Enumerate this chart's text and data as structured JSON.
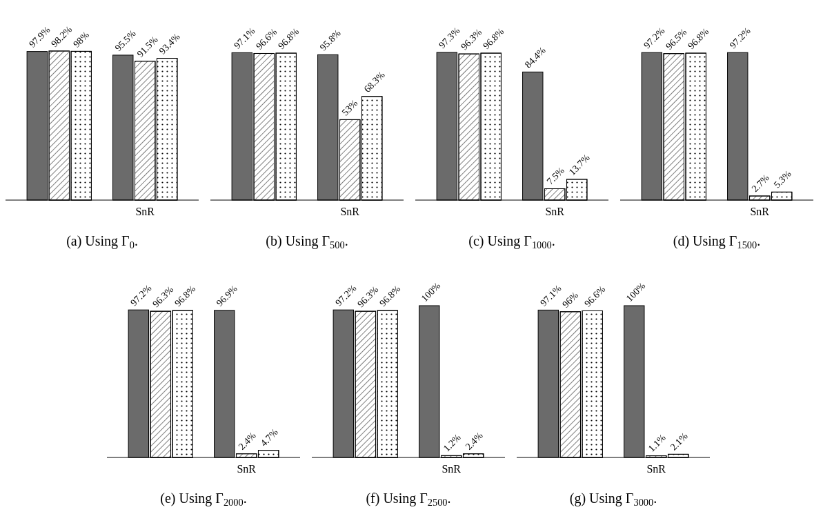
{
  "chart_data": [
    {
      "type": "bar",
      "title": "(a) Using Γ$_{0}$.",
      "categories": [
        null,
        "SnR"
      ],
      "series": [
        {
          "color": "#6b6b6b",
          "values": [
            97.9,
            95.5
          ],
          "value_labels": [
            "97.9%",
            "95.5%"
          ]
        },
        {
          "color": "#ffffff",
          "values": [
            98.2,
            91.5
          ],
          "value_labels": [
            "98.2%",
            "91.5%"
          ]
        },
        {
          "color": "#ffffff",
          "values": [
            98,
            93.4
          ],
          "value_labels": [
            "98%",
            "93.4%"
          ]
        }
      ]
    },
    {
      "type": "bar",
      "title": "(b) Using Γ$_{500}$.",
      "categories": [
        null,
        "SnR"
      ],
      "series": [
        {
          "color": "#6b6b6b",
          "values": [
            97.1,
            95.8
          ],
          "value_labels": [
            "97.1%",
            "95.8%"
          ]
        },
        {
          "color": "#ffffff",
          "values": [
            96.6,
            53
          ],
          "value_labels": [
            "96.6%",
            "53%"
          ]
        },
        {
          "color": "#ffffff",
          "values": [
            96.8,
            68.3
          ],
          "value_labels": [
            "96.8%",
            "68.3%"
          ]
        }
      ]
    },
    {
      "type": "bar",
      "title": "(c) Using Γ$_{1000}$.",
      "categories": [
        null,
        "SnR"
      ],
      "series": [
        {
          "color": "#6b6b6b",
          "values": [
            97.3,
            84.4
          ],
          "value_labels": [
            "97.3%",
            "84.4%"
          ]
        },
        {
          "color": "#ffffff",
          "values": [
            96.3,
            7.5
          ],
          "value_labels": [
            "96.3%",
            "7.5%"
          ]
        },
        {
          "color": "#ffffff",
          "values": [
            96.8,
            13.7
          ],
          "value_labels": [
            "96.8%",
            "13.7%"
          ]
        }
      ]
    },
    {
      "type": "bar",
      "title": "(d) Using Γ$_{1500}$.",
      "categories": [
        null,
        "SnR"
      ],
      "series": [
        {
          "color": "#6b6b6b",
          "values": [
            97.2,
            97.2
          ],
          "value_labels": [
            "97.2%",
            "97.2%"
          ]
        },
        {
          "color": "#ffffff",
          "values": [
            96.5,
            2.7
          ],
          "value_labels": [
            "96.5%",
            "2.7%"
          ]
        },
        {
          "color": "#ffffff",
          "values": [
            96.8,
            5.3
          ],
          "value_labels": [
            "96.8%",
            "5.3%"
          ]
        }
      ]
    },
    {
      "type": "bar",
      "title": "(e) Using Γ$_{2000}$.",
      "categories": [
        null,
        "SnR"
      ],
      "series": [
        {
          "color": "#6b6b6b",
          "values": [
            97.2,
            96.9
          ],
          "value_labels": [
            "97.2%",
            "96.9%"
          ]
        },
        {
          "color": "#ffffff",
          "values": [
            96.3,
            2.4
          ],
          "value_labels": [
            "96.3%",
            "2.4%"
          ]
        },
        {
          "color": "#ffffff",
          "values": [
            96.8,
            4.7
          ],
          "value_labels": [
            "96.8%",
            "4.7%"
          ]
        }
      ]
    },
    {
      "type": "bar",
      "title": "(f) Using Γ$_{2500}$.",
      "categories": [
        null,
        "SnR"
      ],
      "series": [
        {
          "color": "#6b6b6b",
          "values": [
            97.2,
            100
          ],
          "value_labels": [
            "97.2%",
            "100%"
          ]
        },
        {
          "color": "#ffffff",
          "values": [
            96.3,
            1.2
          ],
          "value_labels": [
            "96.3%",
            "1.2%"
          ]
        },
        {
          "color": "#ffffff",
          "values": [
            96.8,
            2.4
          ],
          "value_labels": [
            "96.8%",
            "2.4%"
          ]
        }
      ]
    },
    {
      "type": "bar",
      "title": "(g) Using Γ$_{3000}$.",
      "categories": [
        null,
        "SnR"
      ],
      "series": [
        {
          "color": "#6b6b6b",
          "values": [
            97.1,
            100
          ],
          "value_labels": [
            "97.1%",
            "100%"
          ]
        },
        {
          "color": "#ffffff",
          "values": [
            96,
            1.1
          ],
          "value_labels": [
            "96%",
            "1.1%"
          ]
        },
        {
          "color": "#ffffff",
          "values": [
            96.6,
            2.1
          ],
          "value_labels": [
            "96.6%",
            "2.1%"
          ]
        }
      ]
    }
  ]
}
